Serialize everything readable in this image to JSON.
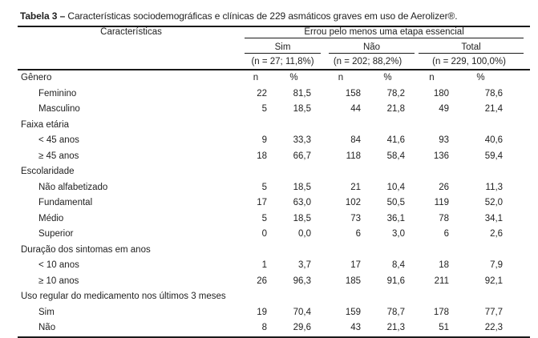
{
  "caption": {
    "label": "Tabela 3 –",
    "text": " Características sociodemográficas e clínicas de 229 asmáticos graves em uso de Aerolizer®."
  },
  "table": {
    "characteristics_header": "Características",
    "group_header": "Errou pelo menos uma etapa essencial",
    "groups": [
      {
        "label": "Sim",
        "subtitle": "(n = 27; 11,8%)"
      },
      {
        "label": "Não",
        "subtitle": "(n = 202; 88,2%)"
      },
      {
        "label": "Total",
        "subtitle": "(n = 229, 100,0%)"
      }
    ],
    "measure_labels": [
      "n",
      "%",
      "n",
      "%",
      "n",
      "%"
    ],
    "rows": [
      {
        "label": "Gênero",
        "indent": false,
        "show_measure_labels": true,
        "values": null
      },
      {
        "label": "Feminino",
        "indent": true,
        "values": [
          "22",
          "81,5",
          "158",
          "78,2",
          "180",
          "78,6"
        ]
      },
      {
        "label": "Masculino",
        "indent": true,
        "values": [
          "5",
          "18,5",
          "44",
          "21,8",
          "49",
          "21,4"
        ]
      },
      {
        "label": "Faixa etária",
        "indent": false,
        "values": null
      },
      {
        "label": "< 45 anos",
        "indent": true,
        "values": [
          "9",
          "33,3",
          "84",
          "41,6",
          "93",
          "40,6"
        ]
      },
      {
        "label": "≥ 45 anos",
        "indent": true,
        "values": [
          "18",
          "66,7",
          "118",
          "58,4",
          "136",
          "59,4"
        ]
      },
      {
        "label": "Escolaridade",
        "indent": false,
        "values": null
      },
      {
        "label": "Não alfabetizado",
        "indent": true,
        "values": [
          "5",
          "18,5",
          "21",
          "10,4",
          "26",
          "11,3"
        ]
      },
      {
        "label": "Fundamental",
        "indent": true,
        "values": [
          "17",
          "63,0",
          "102",
          "50,5",
          "119",
          "52,0"
        ]
      },
      {
        "label": "Médio",
        "indent": true,
        "values": [
          "5",
          "18,5",
          "73",
          "36,1",
          "78",
          "34,1"
        ]
      },
      {
        "label": "Superior",
        "indent": true,
        "values": [
          "0",
          "0,0",
          "6",
          "3,0",
          "6",
          "2,6"
        ]
      },
      {
        "label": "Duração dos sintomas em anos",
        "indent": false,
        "values": null
      },
      {
        "label": "< 10 anos",
        "indent": true,
        "values": [
          "1",
          "3,7",
          "17",
          "8,4",
          "18",
          "7,9"
        ]
      },
      {
        "label": "≥ 10 anos",
        "indent": true,
        "values": [
          "26",
          "96,3",
          "185",
          "91,6",
          "211",
          "92,1"
        ]
      },
      {
        "label": "Uso regular do medicamento nos últimos 3 meses",
        "indent": false,
        "values": null
      },
      {
        "label": "Sim",
        "indent": true,
        "values": [
          "19",
          "70,4",
          "159",
          "78,7",
          "178",
          "77,7"
        ]
      },
      {
        "label": "Não",
        "indent": true,
        "values": [
          "8",
          "29,6",
          "43",
          "21,3",
          "51",
          "22,3"
        ]
      }
    ]
  },
  "colors": {
    "text": "#1f1f1f",
    "rule": "#1a1a1a",
    "background": "#ffffff"
  }
}
